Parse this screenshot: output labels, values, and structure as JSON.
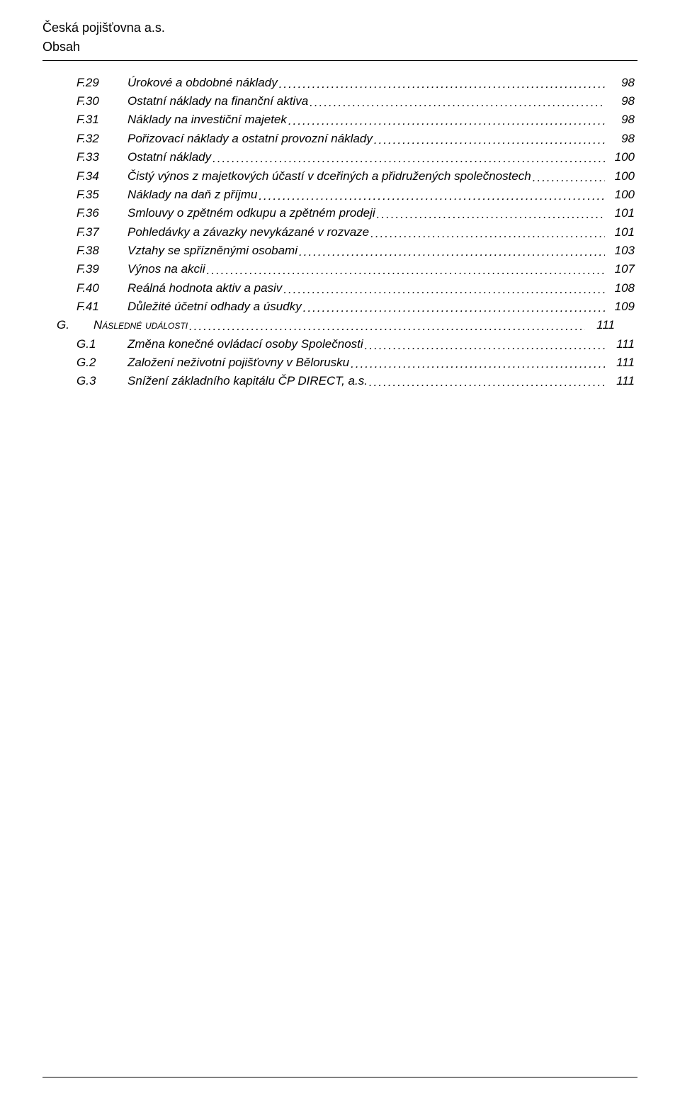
{
  "header": {
    "company": "Česká pojišťovna a.s.",
    "subtitle": "Obsah"
  },
  "toc": [
    {
      "code": "F.29",
      "title": "Úrokové a obdobné náklady",
      "page": "98",
      "kind": "item"
    },
    {
      "code": "F.30",
      "title": "Ostatní náklady na finanční aktiva",
      "page": "98",
      "kind": "item"
    },
    {
      "code": "F.31",
      "title": "Náklady na investiční majetek",
      "page": "98",
      "kind": "item"
    },
    {
      "code": "F.32",
      "title": "Pořizovací náklady a ostatní provozní náklady",
      "page": "98",
      "kind": "item"
    },
    {
      "code": "F.33",
      "title": "Ostatní náklady",
      "page": "100",
      "kind": "item"
    },
    {
      "code": "F.34",
      "title": "Čistý výnos z majetkových účastí v dceřiných a přidružených společnostech",
      "page": "100",
      "kind": "item"
    },
    {
      "code": "F.35",
      "title": "Náklady na daň z příjmu",
      "page": "100",
      "kind": "item"
    },
    {
      "code": "F.36",
      "title": "Smlouvy o zpětném odkupu a zpětném prodeji",
      "page": "101",
      "kind": "item"
    },
    {
      "code": "F.37",
      "title": "Pohledávky a závazky nevykázané v rozvaze",
      "page": "101",
      "kind": "item"
    },
    {
      "code": "F.38",
      "title": "Vztahy se spřízněnými osobami",
      "page": "103",
      "kind": "item"
    },
    {
      "code": "F.39",
      "title": "Výnos na akcii",
      "page": "107",
      "kind": "item"
    },
    {
      "code": "F.40",
      "title": "Reálná hodnota aktiv a pasiv",
      "page": "108",
      "kind": "item"
    },
    {
      "code": "F.41",
      "title": "Důležité účetní odhady a úsudky",
      "page": "109",
      "kind": "item"
    },
    {
      "code": "G.",
      "title": "Následné události",
      "page": "111",
      "kind": "section"
    },
    {
      "code": "G.1",
      "title": "Změna konečné ovládací osoby Společnosti",
      "page": "111",
      "kind": "item"
    },
    {
      "code": "G.2",
      "title": "Založení neživotní pojišťovny v Bělorusku",
      "page": "111",
      "kind": "item"
    },
    {
      "code": "G.3",
      "title": "Snížení základního kapitálu ČP DIRECT, a.s.",
      "page": "111",
      "kind": "item"
    }
  ],
  "colors": {
    "text": "#000000",
    "background": "#ffffff",
    "rule": "#000000"
  }
}
